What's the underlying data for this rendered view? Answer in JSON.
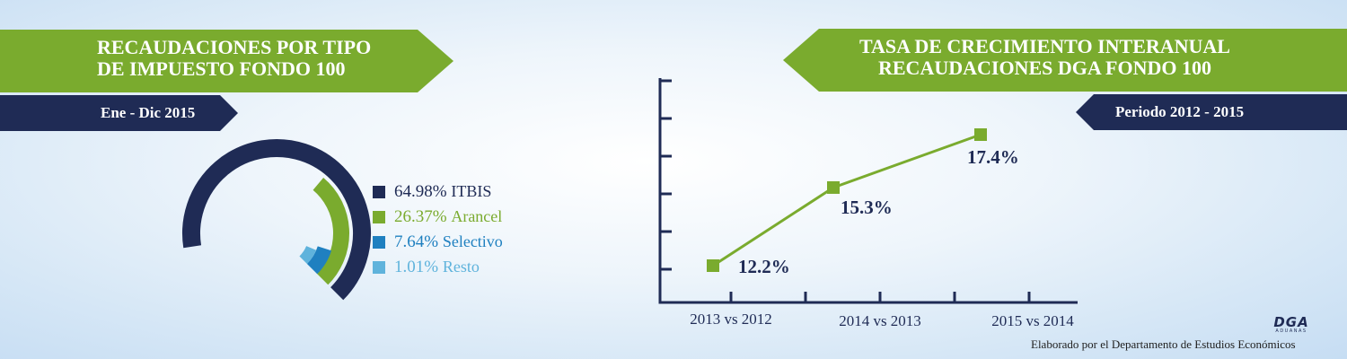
{
  "left_panel": {
    "title_line1": "RECAUDACIONES POR TIPO",
    "title_line2": "DE IMPUESTO FONDO 100",
    "period": "Ene - Dic 2015"
  },
  "right_panel": {
    "title_line1": "TASA DE CRECIMIENTO INTERANUAL",
    "title_line2": "RECAUDACIONES DGA FONDO 100",
    "period": "Periodo 2012 - 2015"
  },
  "colors": {
    "navy": "#1f2b55",
    "green": "#7aab2e",
    "blue": "#1f80c0",
    "light_blue": "#5fb3dc"
  },
  "chart_data": [
    {
      "type": "pie",
      "style": "radial-bar",
      "legend_placement": "right",
      "slices": [
        {
          "percent_label": "64.98%",
          "label": "ITBIS",
          "value": 64.98,
          "color": "#1f2b55"
        },
        {
          "percent_label": "26.37%",
          "label": "Arancel",
          "value": 26.37,
          "color": "#7aab2e"
        },
        {
          "percent_label": "7.64%",
          "label": "Selectivo",
          "value": 7.64,
          "color": "#1f80c0"
        },
        {
          "percent_label": "1.01%",
          "label": "Resto",
          "value": 1.01,
          "color": "#5fb3dc"
        }
      ]
    },
    {
      "type": "line",
      "categories": [
        "2013 vs 2012",
        "2014 vs 2013",
        "2015 vs 2014"
      ],
      "values": [
        12.2,
        15.3,
        17.4
      ],
      "data_labels": [
        "12.2%",
        "15.3%",
        "17.4%"
      ],
      "ylim": [
        10,
        18
      ],
      "y_tick_count": 6,
      "grid": false,
      "marker": "square",
      "color": "#7aab2e"
    }
  ],
  "footer": {
    "logo_text": "DGA",
    "logo_subtext": "ADUANAS",
    "credit": "Elaborado por el Departamento de Estudios Económicos"
  }
}
